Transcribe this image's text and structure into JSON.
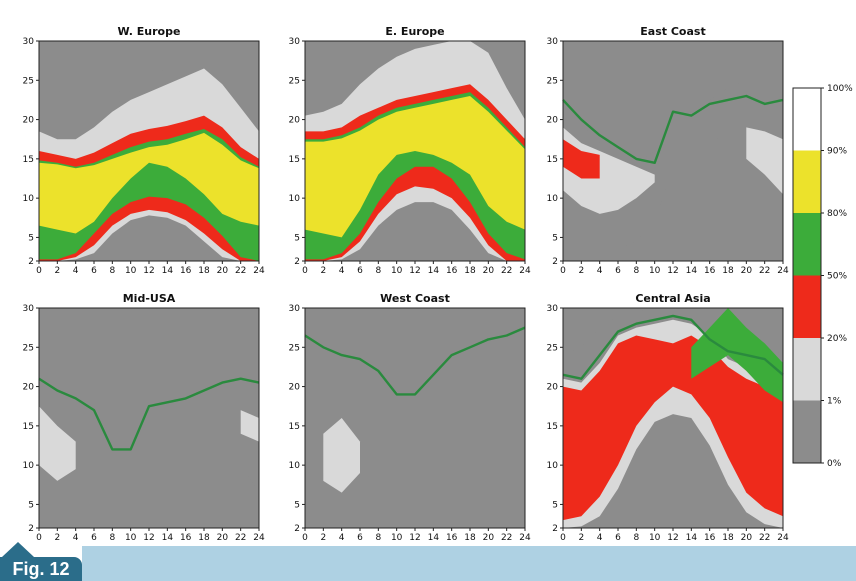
{
  "figure_label": "Fig. 12",
  "chart_data": {
    "type": "heatmap",
    "x": [
      0,
      2,
      4,
      6,
      8,
      10,
      12,
      14,
      16,
      18,
      20,
      22,
      24
    ],
    "xlim": [
      0,
      24
    ],
    "ylim": [
      2,
      30
    ],
    "yticks": [
      2,
      5,
      10,
      15,
      20,
      25,
      30
    ],
    "xticks": [
      "0",
      "2",
      "4",
      "6",
      "8",
      "10",
      "12",
      "14",
      "16",
      "18",
      "20",
      "22",
      "24"
    ],
    "ytick_labels": [
      "2",
      "5",
      "10",
      "15",
      "20",
      "25",
      "30"
    ],
    "colorbar": {
      "labels": [
        "0%",
        "1%",
        "20%",
        "50%",
        "80%",
        "90%",
        "100%"
      ],
      "colors": [
        "#8c8c8c",
        "#d9d9d9",
        "#ee2a1b",
        "#3cac3a",
        "#ece22b",
        "#ffffff"
      ]
    },
    "muf_color": "#2a8a3e",
    "panels": [
      {
        "title": "W. Europe",
        "bands": [
          {
            "level": "1%",
            "upper": [
              24.5,
              23,
              22,
              22.5,
              23,
              24.5,
              25.5,
              26.5,
              28,
              30,
              30,
              28,
              25
            ]
          },
          {
            "level": "20%",
            "upper": [
              18.5,
              17.5,
              17.5,
              19,
              21,
              22.5,
              23.5,
              24.5,
              25.5,
              26.5,
              24.5,
              21.5,
              18.5
            ],
            "lower": [
              2,
              2,
              2.2,
              3,
              5.5,
              7.2,
              7.8,
              7.5,
              6.5,
              4.5,
              2.5,
              2,
              2
            ]
          },
          {
            "level": "50%",
            "upper": [
              16,
              15.5,
              15,
              15.8,
              17,
              18.2,
              18.8,
              19.2,
              19.8,
              20.5,
              19,
              16.5,
              15
            ],
            "lower": [
              2,
              2,
              2.5,
              4,
              6.5,
              8,
              8.5,
              8.2,
              7.2,
              5.5,
              3.5,
              2,
              2
            ]
          },
          {
            "level": "80%",
            "upper": [
              14.8,
              14.5,
              14,
              14.5,
              15.5,
              16.5,
              17.2,
              17.5,
              18.2,
              18.8,
              17.5,
              15.2,
              14
            ],
            "lower": [
              2.2,
              2.2,
              3,
              5.5,
              8,
              9.5,
              10.2,
              10,
              9.2,
              7.5,
              5.2,
              2.5,
              2
            ]
          },
          {
            "level": "90%",
            "upper": [
              14.5,
              14.3,
              13.8,
              14.2,
              15,
              15.8,
              16.5,
              16.8,
              17.5,
              18.3,
              16.8,
              14.8,
              13.8
            ],
            "lower": [
              6.5,
              6,
              5.5,
              7,
              10,
              12.5,
              14.5,
              14,
              12.5,
              10.5,
              8,
              7,
              6.5
            ]
          }
        ]
      },
      {
        "title": "E. Europe",
        "bands": [
          {
            "level": "1%",
            "upper": [
              30,
              30,
              30,
              30,
              30,
              30,
              30,
              30,
              30,
              30,
              30,
              30,
              30
            ]
          },
          {
            "level": "20%",
            "upper": [
              20.5,
              21,
              22,
              24.5,
              26.5,
              28,
              29,
              29.5,
              30,
              30,
              28.5,
              24,
              20
            ],
            "lower": [
              2,
              2,
              2.2,
              3.5,
              6.5,
              8.5,
              9.5,
              9.5,
              8.5,
              6,
              3,
              2,
              2
            ]
          },
          {
            "level": "50%",
            "upper": [
              18.5,
              18.5,
              19,
              20.5,
              21.5,
              22.5,
              23,
              23.5,
              24,
              24.5,
              22.5,
              20,
              17.5
            ],
            "lower": [
              2,
              2,
              2.5,
              4.5,
              8,
              10.5,
              11.5,
              11.2,
              10,
              7.5,
              4,
              2,
              2
            ]
          },
          {
            "level": "80%",
            "upper": [
              17.5,
              17.5,
              18,
              19,
              20.5,
              21.5,
              22,
              22.5,
              23,
              23.5,
              21.5,
              19,
              16.5
            ],
            "lower": [
              2.2,
              2.2,
              3,
              5.5,
              9.5,
              12.5,
              14,
              14,
              12.5,
              9.5,
              5.5,
              3,
              2.2
            ]
          },
          {
            "level": "90%",
            "upper": [
              17.2,
              17.2,
              17.6,
              18.6,
              20,
              21,
              21.5,
              22,
              22.5,
              23,
              21,
              18.6,
              16.2
            ],
            "lower": [
              6,
              5.5,
              5,
              8.5,
              13,
              15.5,
              16,
              15.5,
              14.5,
              13,
              9,
              7,
              6
            ]
          }
        ]
      },
      {
        "title": "East Coast",
        "muf": [
          22.5,
          20,
          18,
          16.5,
          15,
          14.5,
          21,
          20.5,
          22,
          22.5,
          23,
          22,
          22.5
        ],
        "bands": [
          {
            "level": "1%",
            "upper": [
              23,
              19.5,
              17,
              15,
              14.5,
              16,
              20.5,
              20,
              22.5,
              24,
              25,
              25.5,
              23.5
            ],
            "lower": [
              8,
              6,
              4,
              3.5,
              4.5,
              7,
              14,
              16,
              18,
              17,
              14,
              10,
              6
            ]
          },
          {
            "level": "20%",
            "upper": [
              19,
              17,
              16,
              15,
              14,
              13
            ],
            "lower": [
              11,
              9,
              8,
              8.5,
              10,
              12
            ],
            "x_start": 0
          },
          {
            "level": "20%",
            "upper": [
              19,
              18.5,
              17.5
            ],
            "lower": [
              15,
              13,
              10.5
            ],
            "x_start": 20
          },
          {
            "level": "50%",
            "upper": [
              17.5,
              16,
              15.5
            ],
            "lower": [
              14,
              12.5,
              12.5
            ],
            "x_start": 0
          }
        ]
      },
      {
        "title": "Mid-USA",
        "muf": [
          21,
          19.5,
          18.5,
          17,
          12,
          12,
          17.5,
          18,
          18.5,
          19.5,
          20.5,
          21,
          20.5
        ],
        "bands": [
          {
            "level": "1%",
            "upper": [
              23.5,
              21.5,
              19.5,
              17,
              12.5
            ],
            "lower": [
              6,
              4.5,
              5.5,
              8.5,
              12
            ],
            "x_start": 0
          },
          {
            "level": "1%",
            "upper": [
              22,
              24.5,
              23.5
            ],
            "lower": [
              14,
              10,
              6.5
            ],
            "x_start": 20
          },
          {
            "level": "20%",
            "upper": [
              17.5,
              15,
              13
            ],
            "lower": [
              10,
              8,
              9.5
            ],
            "x_start": 0
          },
          {
            "level": "20%",
            "upper": [
              17,
              16
            ],
            "lower": [
              14,
              13
            ],
            "x_start": 22
          }
        ]
      },
      {
        "title": "West Coast",
        "muf": [
          26.5,
          25,
          24,
          23.5,
          22,
          19,
          19,
          21.5,
          24,
          25,
          26,
          26.5,
          27.5
        ],
        "bands": [
          {
            "level": "1%",
            "upper": [
              22.5,
              20.5,
              18,
              15,
              11
            ],
            "lower": [
              7,
              3,
              2.5,
              4,
              9
            ],
            "x_start": 0
          },
          {
            "level": "1%",
            "upper": [
              20.5,
              22.5
            ],
            "lower": [
              16,
              13
            ],
            "x_start": 22
          },
          {
            "level": "20%",
            "upper": [
              14,
              16,
              13
            ],
            "lower": [
              8,
              6.5,
              9
            ],
            "x_start": 2
          }
        ]
      },
      {
        "title": "Central Asia",
        "muf": [
          21.5,
          21,
          24,
          27,
          28,
          28.5,
          29,
          28.5,
          26,
          24.5,
          24,
          23.5,
          21.5
        ],
        "bands": [
          {
            "level": "1%",
            "upper": [
              24,
              25,
              27.5,
              29,
              29.5,
              30,
              30,
              30,
              30,
              28,
              27,
              25.5,
              24
            ]
          },
          {
            "level": "20%",
            "upper": [
              21,
              20.5,
              23,
              26.5,
              27.5,
              28,
              28.5,
              28,
              26.5,
              23.5,
              22.5,
              21,
              19.5
            ],
            "lower": [
              2,
              2.2,
              3.5,
              7,
              12,
              15.5,
              16.5,
              16,
              12.5,
              7.5,
              4,
              2.5,
              2
            ]
          },
          {
            "level": "50%",
            "upper": [
              20,
              19.5,
              22,
              25.5,
              26.5,
              26,
              25.5,
              26.5,
              25,
              22.5,
              21,
              20,
              18.5
            ],
            "lower": [
              3,
              3.5,
              6,
              10,
              15,
              18,
              20,
              19,
              16,
              11,
              6.5,
              4.5,
              3.5
            ]
          },
          {
            "level": "80%",
            "upper": [
              25,
              27.5,
              30,
              27.5,
              25.5,
              23
            ],
            "lower": [
              21,
              22.5,
              24,
              22,
              19.5,
              18
            ],
            "x_start": 14
          }
        ]
      }
    ]
  }
}
